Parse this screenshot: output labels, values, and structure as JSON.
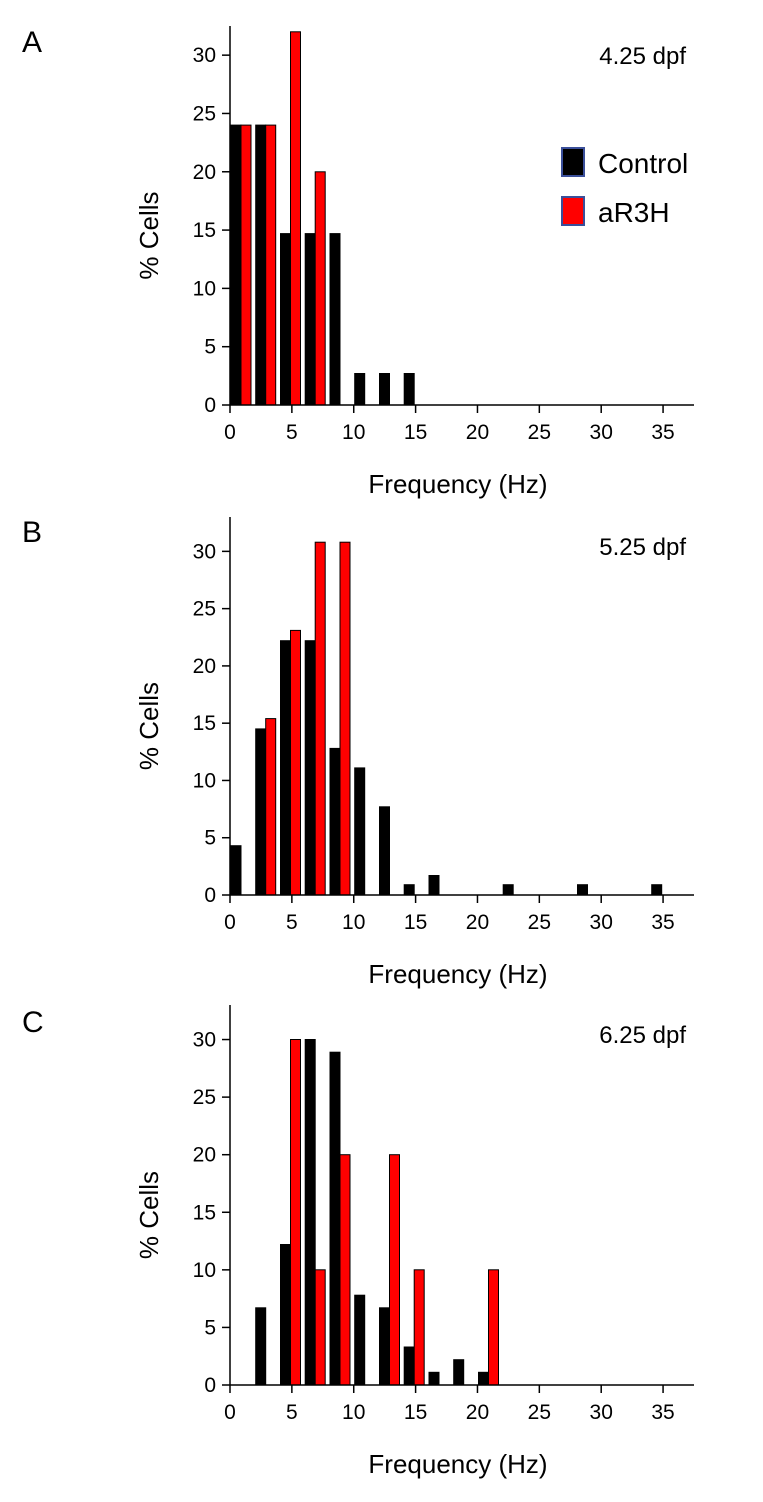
{
  "legend": [
    {
      "name": "Control",
      "color": "#000000"
    },
    {
      "name": "aR3H",
      "color": "#ff0000"
    }
  ],
  "legend_border_color": "#3a4f9a",
  "chart_data": [
    {
      "type": "bar",
      "panel": "A",
      "annotation": "4.25 dpf",
      "xlabel": "Frequency (Hz)",
      "ylabel": "% Cells",
      "xlim": [
        0,
        37.5
      ],
      "ylim": [
        0,
        32.5
      ],
      "xticks": [
        0,
        5,
        10,
        15,
        20,
        25,
        30,
        35
      ],
      "yticks": [
        0,
        5,
        10,
        15,
        20,
        25,
        30
      ],
      "grid": false,
      "legend_position": "top-right",
      "bin_centers": [
        1,
        3,
        5,
        7,
        9,
        11,
        13,
        15,
        17,
        19,
        21,
        23,
        25,
        27,
        29,
        31,
        33,
        35
      ],
      "series": [
        {
          "name": "Control",
          "color": "#000000",
          "values": [
            24,
            24,
            14.7,
            14.7,
            14.7,
            2.7,
            2.7,
            2.7,
            0,
            0,
            0,
            0,
            0,
            0,
            0,
            0,
            0,
            0
          ]
        },
        {
          "name": "aR3H",
          "color": "#ff0000",
          "values": [
            24,
            24,
            32,
            20,
            0,
            0,
            0,
            0,
            0,
            0,
            0,
            0,
            0,
            0,
            0,
            0,
            0,
            0
          ]
        }
      ]
    },
    {
      "type": "bar",
      "panel": "B",
      "annotation": "5.25 dpf",
      "xlabel": "Frequency (Hz)",
      "ylabel": "% Cells",
      "xlim": [
        0,
        37.5
      ],
      "ylim": [
        0,
        33
      ],
      "xticks": [
        0,
        5,
        10,
        15,
        20,
        25,
        30,
        35
      ],
      "yticks": [
        0,
        5,
        10,
        15,
        20,
        25,
        30
      ],
      "grid": false,
      "bin_centers": [
        1,
        3,
        5,
        7,
        9,
        11,
        13,
        15,
        17,
        19,
        21,
        23,
        25,
        27,
        29,
        31,
        33,
        35
      ],
      "series": [
        {
          "name": "Control",
          "color": "#000000",
          "values": [
            4.3,
            14.5,
            22.2,
            22.2,
            12.8,
            11.1,
            7.7,
            0.9,
            1.7,
            0,
            0,
            0.9,
            0,
            0,
            0.9,
            0,
            0,
            0.9
          ]
        },
        {
          "name": "aR3H",
          "color": "#ff0000",
          "values": [
            0,
            15.4,
            23.1,
            30.8,
            30.8,
            0,
            0,
            0,
            0,
            0,
            0,
            0,
            0,
            0,
            0,
            0,
            0,
            0
          ]
        }
      ]
    },
    {
      "type": "bar",
      "panel": "C",
      "annotation": "6.25 dpf",
      "xlabel": "Frequency (Hz)",
      "ylabel": "% Cells",
      "xlim": [
        0,
        37.5
      ],
      "ylim": [
        0,
        33
      ],
      "xticks": [
        0,
        5,
        10,
        15,
        20,
        25,
        30,
        35
      ],
      "yticks": [
        0,
        5,
        10,
        15,
        20,
        25,
        30
      ],
      "grid": false,
      "bin_centers": [
        1,
        3,
        5,
        7,
        9,
        11,
        13,
        15,
        17,
        19,
        21,
        23,
        25,
        27,
        29,
        31,
        33,
        35
      ],
      "series": [
        {
          "name": "Control",
          "color": "#000000",
          "values": [
            0,
            6.7,
            12.2,
            30,
            28.9,
            7.8,
            6.7,
            3.3,
            1.1,
            2.2,
            1.1,
            0,
            0,
            0,
            0,
            0,
            0,
            0
          ]
        },
        {
          "name": "aR3H",
          "color": "#ff0000",
          "values": [
            0,
            0,
            30,
            10,
            20,
            0,
            20,
            10,
            0,
            0,
            10,
            0,
            0,
            0,
            0,
            0,
            0,
            0
          ]
        }
      ]
    }
  ]
}
